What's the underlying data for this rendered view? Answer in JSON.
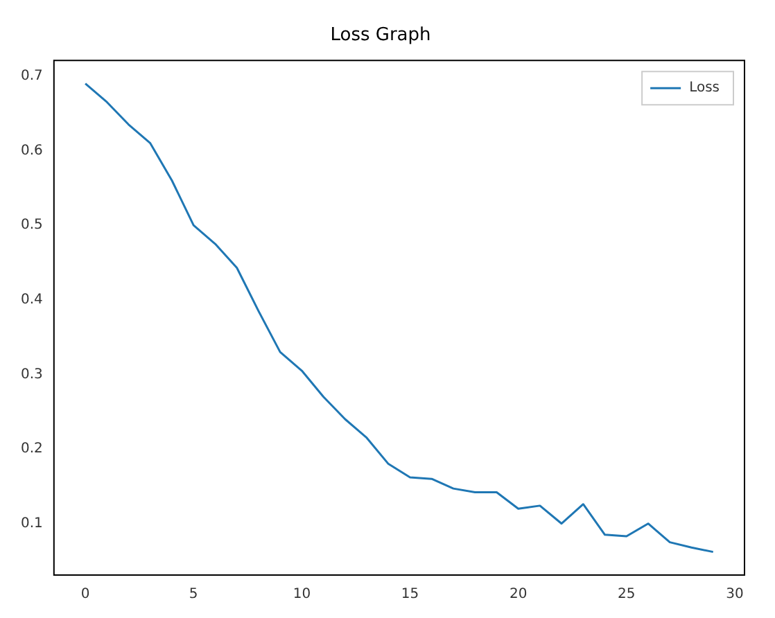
{
  "chart_data": {
    "type": "line",
    "title": "Loss Graph",
    "x": [
      0,
      1,
      2,
      3,
      4,
      5,
      6,
      7,
      8,
      9,
      10,
      11,
      12,
      13,
      14,
      15,
      16,
      17,
      18,
      19,
      20,
      21,
      22,
      23,
      24,
      25,
      26,
      27,
      28,
      29
    ],
    "series": [
      {
        "name": "Loss",
        "color": "#1f77b4",
        "values": [
          0.69,
          0.665,
          0.635,
          0.61,
          0.56,
          0.5,
          0.475,
          0.443,
          0.385,
          0.33,
          0.305,
          0.27,
          0.24,
          0.215,
          0.18,
          0.162,
          0.16,
          0.147,
          0.142,
          0.142,
          0.12,
          0.124,
          0.1,
          0.126,
          0.085,
          0.083,
          0.1,
          0.075,
          0.068,
          0.062
        ]
      }
    ],
    "xlim": [
      -1.45,
      30.45
    ],
    "xticks": [
      0,
      5,
      10,
      15,
      20,
      25,
      30
    ],
    "ylim": [
      0.031,
      0.721
    ],
    "yticks": [
      0.1,
      0.2,
      0.3,
      0.4,
      0.5,
      0.6,
      0.7
    ],
    "grid": false,
    "legend": "top right",
    "marker": "none",
    "line_style": "solid"
  }
}
